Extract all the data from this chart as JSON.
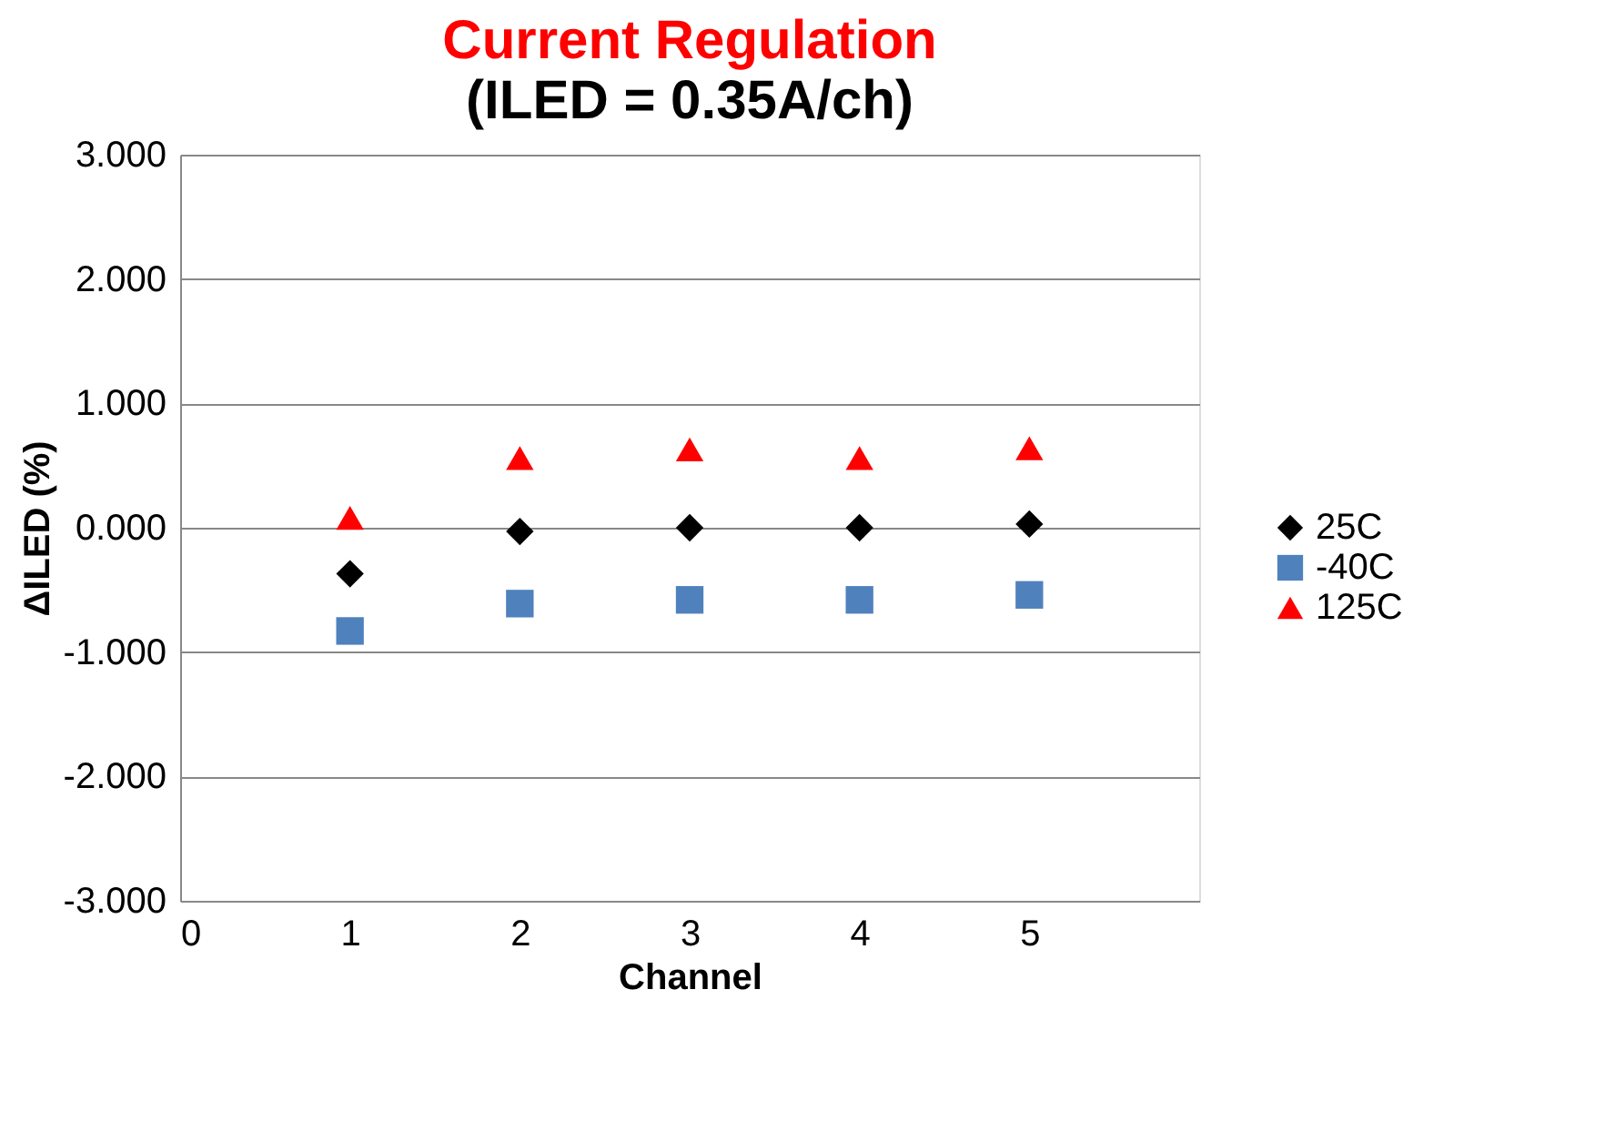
{
  "chart_data": {
    "type": "scatter",
    "title": "Current Regulation",
    "subtitle": "(ILED = 0.35A/ch)",
    "xlabel": "Channel",
    "ylabel": "ΔILED (%)",
    "x": [
      1,
      2,
      3,
      4,
      5
    ],
    "series": [
      {
        "name": "25C",
        "color": "#000000",
        "marker": "diamond",
        "values": [
          -0.37,
          -0.03,
          0.0,
          0.0,
          0.03
        ]
      },
      {
        "name": "-40C",
        "color": "#4f81bd",
        "marker": "square",
        "values": [
          -0.83,
          -0.61,
          -0.58,
          -0.58,
          -0.54
        ]
      },
      {
        "name": "125C",
        "color": "#ff0000",
        "marker": "triangle",
        "values": [
          0.08,
          0.56,
          0.63,
          0.56,
          0.64
        ]
      }
    ],
    "xlim": [
      0,
      6
    ],
    "xticks": [
      0,
      1,
      2,
      3,
      4,
      5
    ],
    "ylim": [
      -3,
      3
    ],
    "yticks": [
      {
        "value": -3,
        "label": "-3.000"
      },
      {
        "value": -2,
        "label": "-2.000"
      },
      {
        "value": -1,
        "label": "-1.000"
      },
      {
        "value": 0,
        "label": "0.000"
      },
      {
        "value": 1,
        "label": "1.000"
      },
      {
        "value": 2,
        "label": "2.000"
      },
      {
        "value": 3,
        "label": "3.000"
      }
    ],
    "grid": "y",
    "legend": "right"
  }
}
